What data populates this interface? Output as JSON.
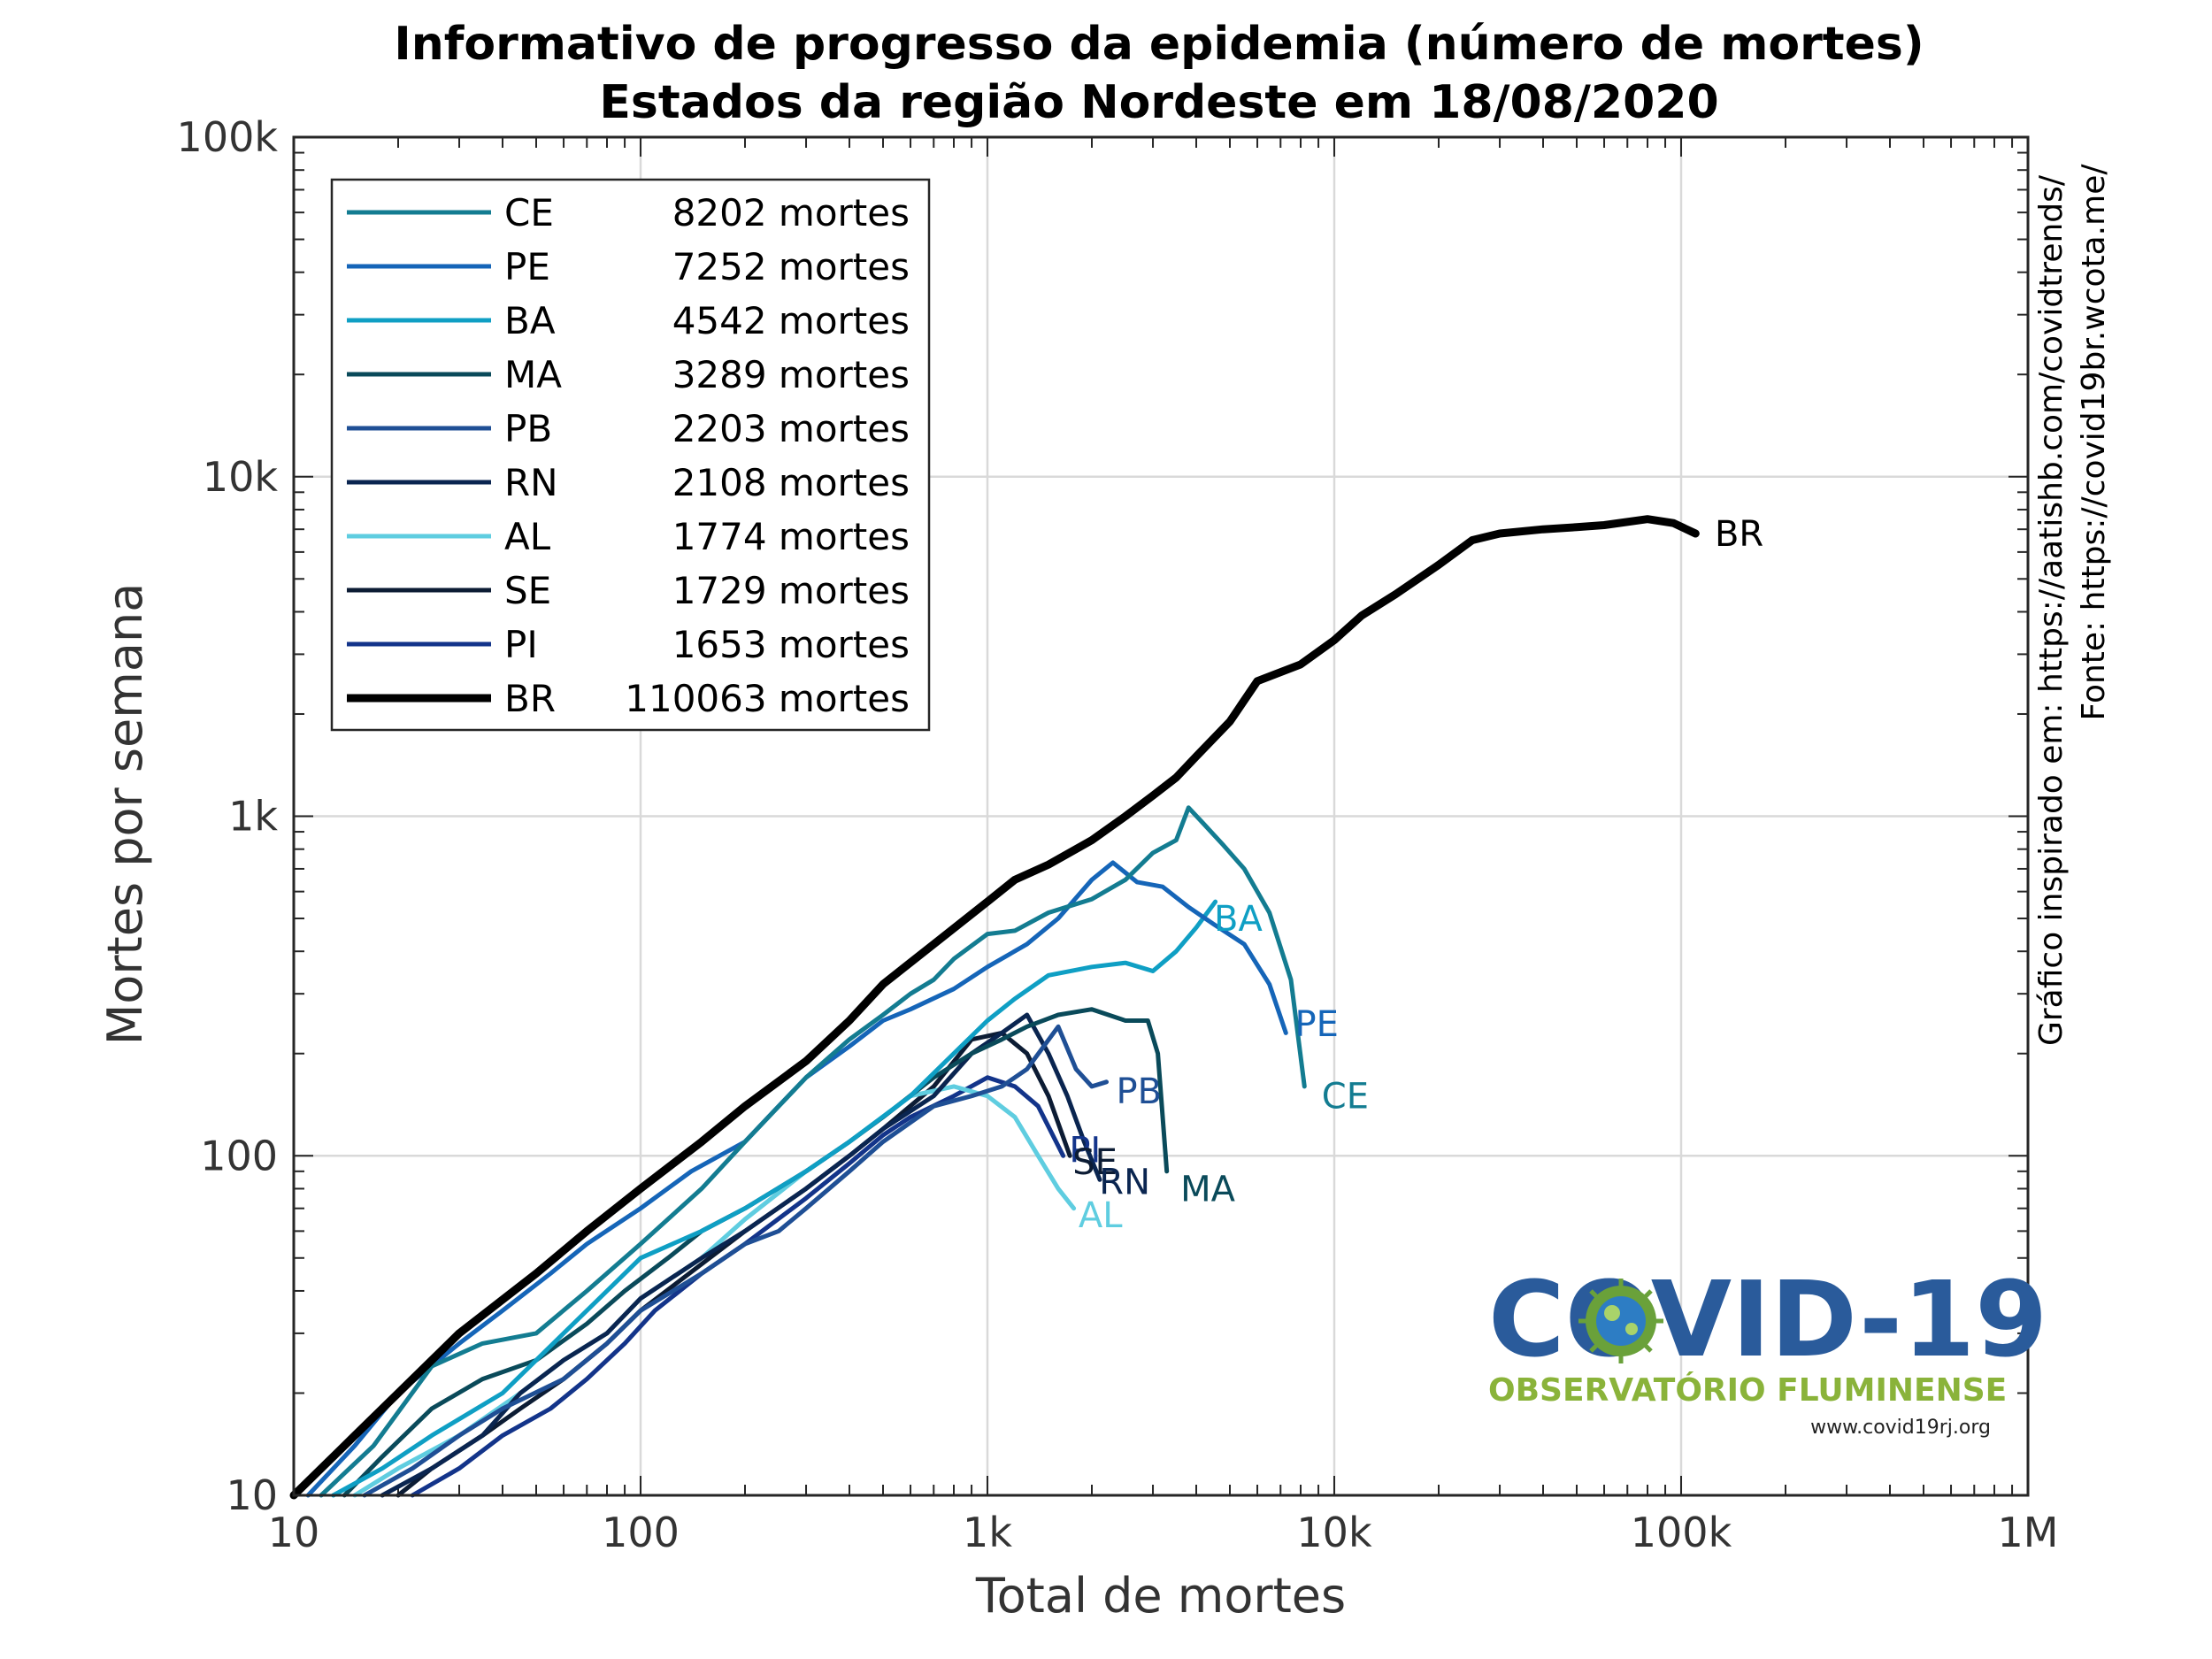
{
  "chart_data": {
    "type": "line",
    "title": "Informativo de progresso da epidemia (número de mortes)",
    "subtitle": "Estados da região Nordeste em 18/08/2020",
    "xlabel": "Total de mortes",
    "ylabel": "Mortes por semana",
    "xscale": "log",
    "yscale": "log",
    "xlim": [
      10,
      1000000
    ],
    "ylim": [
      10,
      100000
    ],
    "x_ticks": [
      10,
      100,
      1000,
      10000,
      100000,
      1000000
    ],
    "x_tick_labels": [
      "10",
      "100",
      "1k",
      "10k",
      "100k",
      "1M"
    ],
    "y_ticks": [
      10,
      100,
      1000,
      10000,
      100000
    ],
    "y_tick_labels": [
      "10",
      "100",
      "1k",
      "10k",
      "100k"
    ],
    "grid": true,
    "legend_position": "top-left",
    "side_notes": [
      "Gráfico inspirado em: https://aatishb.com/covidtrends/",
      "Fonte: https://covid19br.wcota.me/"
    ],
    "series": [
      {
        "name": "CE",
        "legend": "8202 mortes",
        "color": "#137c91",
        "width": 5,
        "points": [
          [
            12,
            10
          ],
          [
            17,
            14
          ],
          [
            25,
            24
          ],
          [
            35,
            28
          ],
          [
            50,
            30
          ],
          [
            70,
            40
          ],
          [
            100,
            55
          ],
          [
            150,
            80
          ],
          [
            200,
            110
          ],
          [
            300,
            170
          ],
          [
            400,
            220
          ],
          [
            500,
            260
          ],
          [
            600,
            300
          ],
          [
            700,
            330
          ],
          [
            800,
            380
          ],
          [
            1000,
            450
          ],
          [
            1200,
            460
          ],
          [
            1500,
            520
          ],
          [
            2000,
            570
          ],
          [
            2500,
            650
          ],
          [
            3000,
            780
          ],
          [
            3500,
            850
          ],
          [
            3800,
            1060
          ],
          [
            4200,
            950
          ],
          [
            4800,
            820
          ],
          [
            5500,
            700
          ],
          [
            6500,
            520
          ],
          [
            7500,
            330
          ],
          [
            8202,
            160
          ]
        ],
        "label": "CE",
        "label_at": [
          9200,
          150
        ]
      },
      {
        "name": "PE",
        "legend": "7252 mortes",
        "color": "#1565b8",
        "width": 5,
        "points": [
          [
            11,
            10
          ],
          [
            15,
            14
          ],
          [
            20,
            20
          ],
          [
            30,
            28
          ],
          [
            40,
            35
          ],
          [
            55,
            45
          ],
          [
            70,
            55
          ],
          [
            100,
            70
          ],
          [
            140,
            90
          ],
          [
            200,
            110
          ],
          [
            250,
            140
          ],
          [
            300,
            170
          ],
          [
            400,
            210
          ],
          [
            500,
            250
          ],
          [
            600,
            270
          ],
          [
            800,
            310
          ],
          [
            1000,
            360
          ],
          [
            1300,
            420
          ],
          [
            1600,
            500
          ],
          [
            2000,
            650
          ],
          [
            2300,
            730
          ],
          [
            2700,
            640
          ],
          [
            3200,
            620
          ],
          [
            3800,
            540
          ],
          [
            4500,
            480
          ],
          [
            5500,
            420
          ],
          [
            6500,
            320
          ],
          [
            7252,
            230
          ]
        ],
        "label": "PE",
        "label_at": [
          7700,
          245
        ]
      },
      {
        "name": "BA",
        "legend": "4542 mortes",
        "color": "#0f9fc4",
        "width": 5,
        "points": [
          [
            13,
            10
          ],
          [
            18,
            12
          ],
          [
            25,
            15
          ],
          [
            40,
            20
          ],
          [
            60,
            30
          ],
          [
            80,
            40
          ],
          [
            100,
            50
          ],
          [
            150,
            60
          ],
          [
            200,
            70
          ],
          [
            300,
            90
          ],
          [
            400,
            110
          ],
          [
            600,
            150
          ],
          [
            800,
            200
          ],
          [
            1000,
            250
          ],
          [
            1200,
            290
          ],
          [
            1500,
            340
          ],
          [
            2000,
            360
          ],
          [
            2500,
            370
          ],
          [
            3000,
            350
          ],
          [
            3500,
            400
          ],
          [
            4000,
            470
          ],
          [
            4542,
            560
          ]
        ],
        "label": "BA",
        "label_at": [
          4500,
          500
        ]
      },
      {
        "name": "MA",
        "legend": "3289 mortes",
        "color": "#0a4a5a",
        "width": 5,
        "points": [
          [
            14,
            10
          ],
          [
            18,
            13
          ],
          [
            25,
            18
          ],
          [
            35,
            22
          ],
          [
            50,
            25
          ],
          [
            70,
            32
          ],
          [
            90,
            40
          ],
          [
            120,
            50
          ],
          [
            150,
            60
          ],
          [
            200,
            70
          ],
          [
            300,
            90
          ],
          [
            400,
            110
          ],
          [
            500,
            130
          ],
          [
            700,
            170
          ],
          [
            900,
            200
          ],
          [
            1100,
            220
          ],
          [
            1300,
            240
          ],
          [
            1600,
            260
          ],
          [
            2000,
            270
          ],
          [
            2500,
            250
          ],
          [
            2900,
            250
          ],
          [
            3100,
            200
          ],
          [
            3289,
            90
          ]
        ],
        "label": "MA",
        "label_at": [
          3600,
          80
        ]
      },
      {
        "name": "PB",
        "legend": "2203 mortes",
        "color": "#1f4f95",
        "width": 5,
        "points": [
          [
            16,
            10
          ],
          [
            22,
            12
          ],
          [
            30,
            15
          ],
          [
            40,
            18
          ],
          [
            60,
            22
          ],
          [
            80,
            28
          ],
          [
            100,
            35
          ],
          [
            150,
            45
          ],
          [
            200,
            55
          ],
          [
            250,
            60
          ],
          [
            300,
            70
          ],
          [
            400,
            90
          ],
          [
            500,
            110
          ],
          [
            700,
            140
          ],
          [
            900,
            150
          ],
          [
            1100,
            160
          ],
          [
            1300,
            180
          ],
          [
            1600,
            240
          ],
          [
            1800,
            180
          ],
          [
            2000,
            160
          ],
          [
            2203,
            165
          ]
        ],
        "label": "PB",
        "label_at": [
          2350,
          155
        ]
      },
      {
        "name": "RN",
        "legend": "2108 mortes",
        "color": "#0a2550",
        "width": 5,
        "points": [
          [
            18,
            10
          ],
          [
            25,
            12
          ],
          [
            35,
            15
          ],
          [
            45,
            20
          ],
          [
            60,
            25
          ],
          [
            80,
            30
          ],
          [
            100,
            38
          ],
          [
            150,
            50
          ],
          [
            200,
            60
          ],
          [
            300,
            80
          ],
          [
            400,
            100
          ],
          [
            500,
            120
          ],
          [
            700,
            150
          ],
          [
            900,
            200
          ],
          [
            1100,
            230
          ],
          [
            1300,
            260
          ],
          [
            1500,
            200
          ],
          [
            1700,
            150
          ],
          [
            1900,
            110
          ],
          [
            2108,
            85
          ]
        ],
        "label": "RN",
        "label_at": [
          2100,
          84
        ]
      },
      {
        "name": "AL",
        "legend": "1774 mortes",
        "color": "#5fcde0",
        "width": 5,
        "points": [
          [
            15,
            10
          ],
          [
            20,
            12
          ],
          [
            30,
            15
          ],
          [
            45,
            20
          ],
          [
            60,
            25
          ],
          [
            80,
            30
          ],
          [
            100,
            38
          ],
          [
            150,
            50
          ],
          [
            200,
            65
          ],
          [
            300,
            90
          ],
          [
            400,
            110
          ],
          [
            500,
            130
          ],
          [
            600,
            150
          ],
          [
            800,
            160
          ],
          [
            1000,
            150
          ],
          [
            1200,
            130
          ],
          [
            1400,
            100
          ],
          [
            1600,
            80
          ],
          [
            1774,
            70
          ]
        ],
        "label": "AL",
        "label_at": [
          1830,
          67
        ]
      },
      {
        "name": "SE",
        "legend": "1729 mortes",
        "color": "#0c1c34",
        "width": 5,
        "points": [
          [
            20,
            10
          ],
          [
            25,
            12
          ],
          [
            35,
            15
          ],
          [
            45,
            18
          ],
          [
            60,
            22
          ],
          [
            80,
            28
          ],
          [
            100,
            35
          ],
          [
            150,
            48
          ],
          [
            200,
            60
          ],
          [
            300,
            80
          ],
          [
            400,
            100
          ],
          [
            500,
            120
          ],
          [
            700,
            160
          ],
          [
            900,
            220
          ],
          [
            1100,
            230
          ],
          [
            1300,
            200
          ],
          [
            1500,
            150
          ],
          [
            1729,
            100
          ]
        ],
        "label": "SE",
        "label_at": [
          1760,
          96
        ]
      },
      {
        "name": "PI",
        "legend": "1653 mortes",
        "color": "#13348a",
        "width": 5,
        "points": [
          [
            22,
            10
          ],
          [
            30,
            12
          ],
          [
            40,
            15
          ],
          [
            55,
            18
          ],
          [
            70,
            22
          ],
          [
            90,
            28
          ],
          [
            110,
            35
          ],
          [
            150,
            45
          ],
          [
            200,
            55
          ],
          [
            300,
            75
          ],
          [
            400,
            95
          ],
          [
            500,
            115
          ],
          [
            600,
            130
          ],
          [
            800,
            150
          ],
          [
            1000,
            170
          ],
          [
            1200,
            160
          ],
          [
            1400,
            140
          ],
          [
            1653,
            100
          ]
        ],
        "label": "PI",
        "label_at": [
          1720,
          104
        ]
      },
      {
        "name": "BR",
        "legend": "110063 mortes",
        "color": "#000000",
        "width": 9,
        "points": [
          [
            10,
            10
          ],
          [
            15,
            15
          ],
          [
            20,
            20
          ],
          [
            30,
            30
          ],
          [
            50,
            45
          ],
          [
            70,
            60
          ],
          [
            100,
            80
          ],
          [
            150,
            110
          ],
          [
            200,
            140
          ],
          [
            300,
            190
          ],
          [
            400,
            250
          ],
          [
            500,
            320
          ],
          [
            700,
            420
          ],
          [
            1000,
            560
          ],
          [
            1200,
            650
          ],
          [
            1500,
            720
          ],
          [
            2000,
            850
          ],
          [
            2500,
            1000
          ],
          [
            3000,
            1150
          ],
          [
            3500,
            1300
          ],
          [
            4000,
            1500
          ],
          [
            5000,
            1900
          ],
          [
            6000,
            2500
          ],
          [
            8000,
            2800
          ],
          [
            10000,
            3300
          ],
          [
            12000,
            3900
          ],
          [
            15000,
            4500
          ],
          [
            20000,
            5500
          ],
          [
            25000,
            6500
          ],
          [
            30000,
            6800
          ],
          [
            40000,
            7000
          ],
          [
            50000,
            7100
          ],
          [
            60000,
            7200
          ],
          [
            80000,
            7500
          ],
          [
            95000,
            7300
          ],
          [
            110063,
            6800
          ]
        ],
        "label": "BR",
        "label_at": [
          125000,
          6800
        ]
      }
    ]
  },
  "logo": {
    "main": "COVID-19",
    "sub": "OBSERVATÓRIO FLUMINENSE",
    "url": "www.covid19rj.org"
  }
}
